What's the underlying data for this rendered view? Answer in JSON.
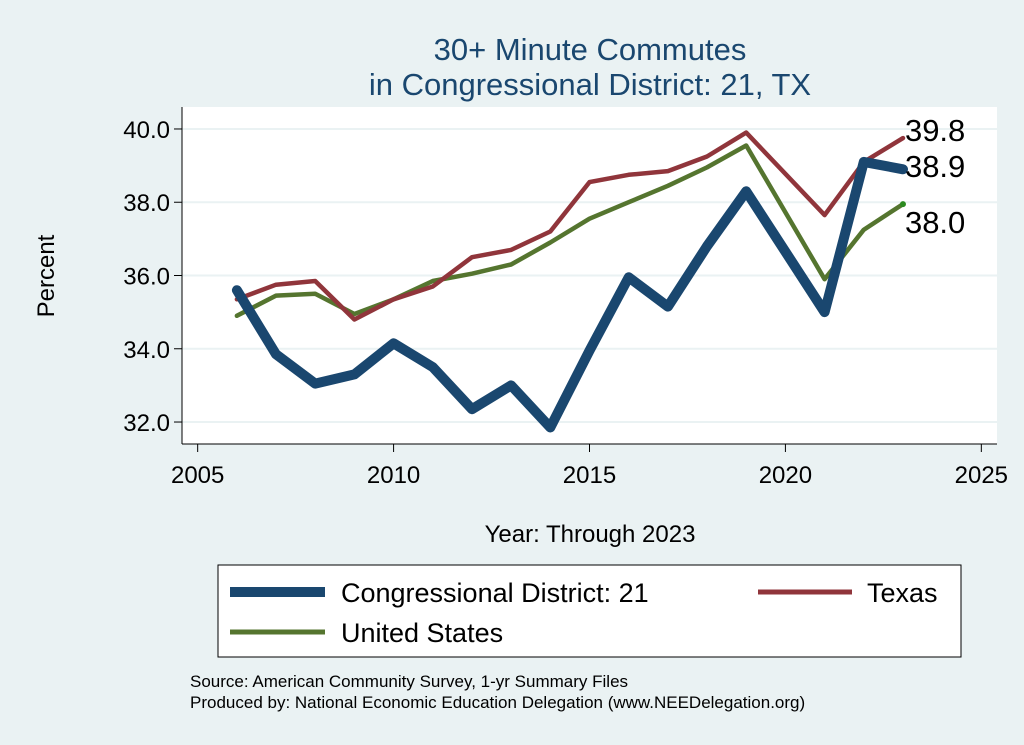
{
  "chart_data": {
    "type": "line",
    "title": [
      "30+ Minute Commutes",
      "in Congressional District:  21, TX"
    ],
    "xlabel": "Year: Through 2023",
    "ylabel": "Percent",
    "xlim": [
      2005,
      2025
    ],
    "ylim": [
      31.4,
      40.6
    ],
    "xticks": [
      2005,
      2010,
      2015,
      2020,
      2025
    ],
    "yticks": [
      "32.0",
      "34.0",
      "36.0",
      "38.0",
      "40.0"
    ],
    "grid": true,
    "legend_position": "bottom",
    "x": [
      2006,
      2007,
      2008,
      2009,
      2010,
      2011,
      2012,
      2013,
      2014,
      2015,
      2016,
      2017,
      2018,
      2019,
      2021,
      2022,
      2023
    ],
    "series": [
      {
        "name": "Congressional District:  21",
        "color": "#1a476f",
        "values": [
          35.6,
          33.85,
          33.05,
          33.3,
          34.15,
          33.5,
          32.35,
          33.0,
          31.85,
          33.95,
          35.95,
          35.15,
          36.8,
          38.3,
          35.0,
          39.1,
          38.9
        ],
        "end_label": "38.9"
      },
      {
        "name": "Texas",
        "color": "#90353b",
        "values": [
          35.35,
          35.75,
          35.85,
          34.8,
          35.35,
          35.7,
          36.5,
          36.7,
          37.2,
          38.55,
          38.75,
          38.85,
          39.25,
          39.9,
          37.65,
          39.1,
          39.75
        ],
        "end_label": "39.8"
      },
      {
        "name": "United States",
        "color": "#55752f",
        "values": [
          34.9,
          35.45,
          35.5,
          34.95,
          35.35,
          35.85,
          36.05,
          36.3,
          36.9,
          37.55,
          38.0,
          38.45,
          38.95,
          39.55,
          35.9,
          37.25,
          37.95
        ],
        "end_label": "38.0"
      }
    ]
  },
  "source_lines": [
    "Source: American Community Survey, 1-yr Summary Files",
    "Produced by: National Economic Education Delegation (www.NEEDelegation.org)"
  ]
}
